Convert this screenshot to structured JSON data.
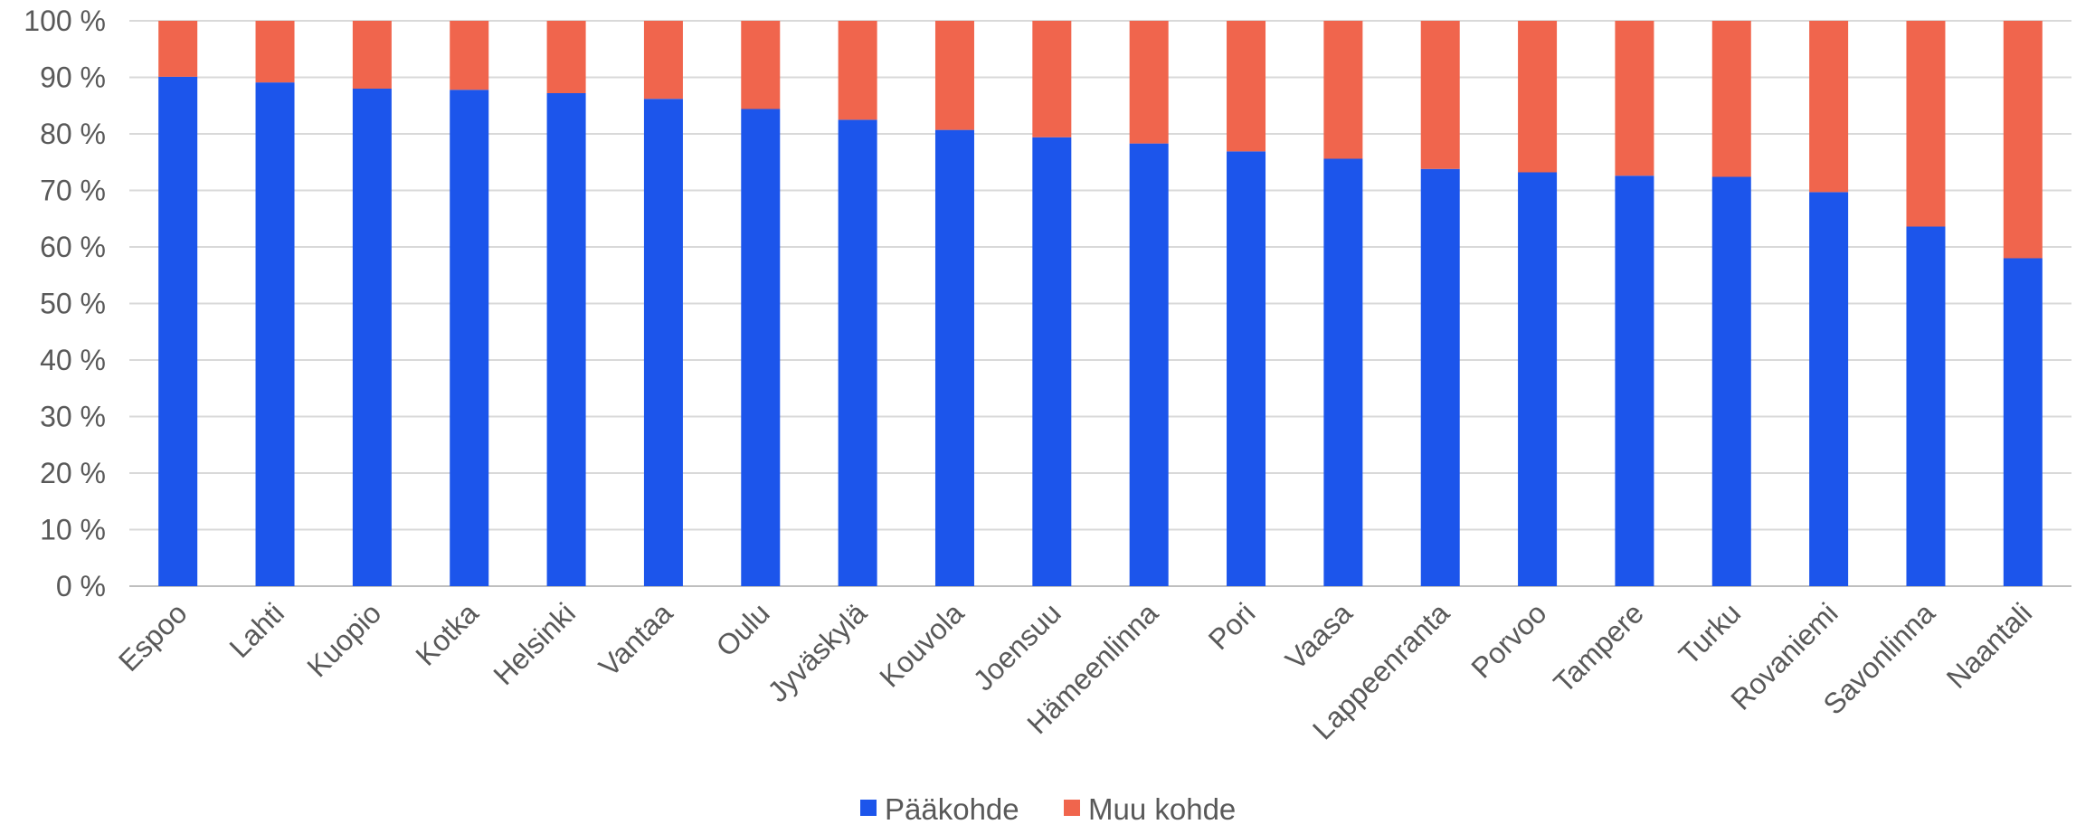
{
  "chart_data": {
    "type": "bar",
    "stacked": true,
    "percent_stacked": true,
    "categories": [
      "Espoo",
      "Lahti",
      "Kuopio",
      "Kotka",
      "Helsinki",
      "Vantaa",
      "Oulu",
      "Jyväskylä",
      "Kouvola",
      "Joensuu",
      "Hämeenlinna",
      "Pori",
      "Vaasa",
      "Lappeenranta",
      "Porvoo",
      "Tampere",
      "Turku",
      "Rovaniemi",
      "Savonlinna",
      "Naantali"
    ],
    "series": [
      {
        "name": "Pääkohde",
        "color": "#1c55eb",
        "values": [
          90.1,
          89.1,
          88.0,
          87.8,
          87.2,
          86.2,
          84.4,
          82.5,
          80.7,
          79.4,
          78.3,
          76.9,
          75.6,
          73.8,
          73.2,
          72.6,
          72.4,
          69.7,
          63.6,
          58.0
        ]
      },
      {
        "name": "Muu kohde",
        "color": "#f0654d",
        "values": [
          9.9,
          10.9,
          12.0,
          12.2,
          12.8,
          13.8,
          15.6,
          17.5,
          19.3,
          20.6,
          21.7,
          23.1,
          24.4,
          26.2,
          26.8,
          27.4,
          27.6,
          30.3,
          36.4,
          42.0
        ]
      }
    ],
    "y_ticks": [
      "0 %",
      "10 %",
      "20 %",
      "30 %",
      "40 %",
      "50 %",
      "60 %",
      "70 %",
      "80 %",
      "90 %",
      "100 %"
    ],
    "ylim": [
      0,
      100
    ],
    "grid": true,
    "legend_position": "bottom",
    "title": "",
    "xlabel": "",
    "ylabel": ""
  }
}
